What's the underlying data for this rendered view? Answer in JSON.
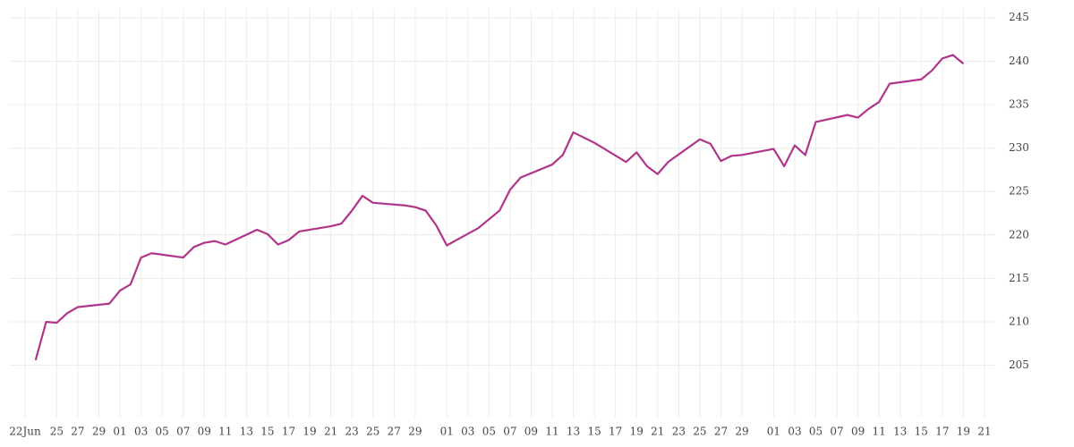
{
  "chart_data": {
    "type": "line",
    "x": [
      1,
      2,
      3,
      4,
      5,
      8,
      9,
      10,
      11,
      12,
      15,
      16,
      17,
      18,
      19,
      22,
      23,
      24,
      25,
      26,
      29,
      30,
      31,
      32,
      33,
      36,
      37,
      38,
      39,
      40,
      43,
      44,
      45,
      46,
      47,
      50,
      51,
      52,
      54,
      57,
      58,
      59,
      60,
      61,
      64,
      65,
      66,
      67,
      68,
      71,
      72,
      73,
      74,
      75,
      78,
      79,
      80,
      81,
      82,
      85,
      86,
      87,
      88,
      89
    ],
    "values": [
      205.6,
      210.0,
      209.9,
      211.0,
      211.7,
      212.1,
      213.6,
      214.3,
      217.4,
      217.9,
      217.4,
      218.6,
      219.1,
      219.3,
      218.9,
      220.6,
      220.1,
      218.9,
      219.4,
      220.4,
      221.0,
      221.3,
      222.8,
      224.5,
      223.7,
      223.4,
      223.2,
      222.8,
      221.1,
      218.8,
      220.8,
      221.8,
      222.8,
      225.2,
      226.6,
      228.1,
      229.2,
      231.8,
      230.6,
      228.4,
      229.5,
      227.9,
      227.0,
      228.4,
      231.0,
      230.5,
      228.5,
      229.1,
      229.2,
      229.9,
      227.9,
      230.3,
      229.2,
      233.0,
      233.8,
      233.5,
      234.5,
      235.3,
      237.4,
      237.9,
      238.9,
      240.3,
      240.7,
      239.7
    ],
    "color": "#b0358a",
    "xlim": [
      0,
      91
    ],
    "xticks": [
      {
        "value": 0,
        "label": "22Jun"
      },
      {
        "value": 3,
        "label": "25"
      },
      {
        "value": 5,
        "label": "27"
      },
      {
        "value": 7,
        "label": "29"
      },
      {
        "value": 9,
        "label": "01"
      },
      {
        "value": 11,
        "label": "03"
      },
      {
        "value": 13,
        "label": "05"
      },
      {
        "value": 15,
        "label": "07"
      },
      {
        "value": 17,
        "label": "09"
      },
      {
        "value": 19,
        "label": "11"
      },
      {
        "value": 21,
        "label": "13"
      },
      {
        "value": 23,
        "label": "15"
      },
      {
        "value": 25,
        "label": "17"
      },
      {
        "value": 27,
        "label": "19"
      },
      {
        "value": 29,
        "label": "21"
      },
      {
        "value": 31,
        "label": "23"
      },
      {
        "value": 33,
        "label": "25"
      },
      {
        "value": 35,
        "label": "27"
      },
      {
        "value": 37,
        "label": "29"
      },
      {
        "value": 40,
        "label": "01"
      },
      {
        "value": 42,
        "label": "03"
      },
      {
        "value": 44,
        "label": "05"
      },
      {
        "value": 46,
        "label": "07"
      },
      {
        "value": 48,
        "label": "09"
      },
      {
        "value": 50,
        "label": "11"
      },
      {
        "value": 52,
        "label": "13"
      },
      {
        "value": 54,
        "label": "15"
      },
      {
        "value": 56,
        "label": "17"
      },
      {
        "value": 58,
        "label": "19"
      },
      {
        "value": 60,
        "label": "21"
      },
      {
        "value": 62,
        "label": "23"
      },
      {
        "value": 64,
        "label": "25"
      },
      {
        "value": 66,
        "label": "27"
      },
      {
        "value": 68,
        "label": "29"
      },
      {
        "value": 71,
        "label": "01"
      },
      {
        "value": 73,
        "label": "03"
      },
      {
        "value": 75,
        "label": "05"
      },
      {
        "value": 77,
        "label": "07"
      },
      {
        "value": 79,
        "label": "09"
      },
      {
        "value": 81,
        "label": "11"
      },
      {
        "value": 83,
        "label": "13"
      },
      {
        "value": 85,
        "label": "15"
      },
      {
        "value": 87,
        "label": "17"
      },
      {
        "value": 89,
        "label": "19"
      },
      {
        "value": 91,
        "label": "21"
      }
    ],
    "ylim": [
      199,
      246
    ],
    "yticks": [
      205,
      210,
      215,
      220,
      225,
      230,
      235,
      240,
      245
    ],
    "grid": true
  }
}
